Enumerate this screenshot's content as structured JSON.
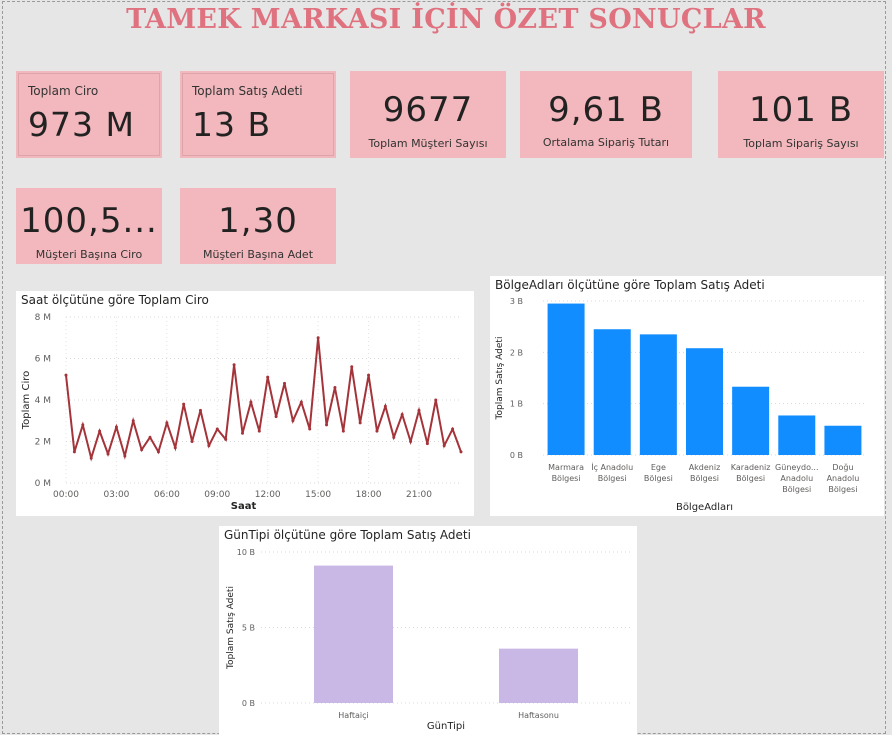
{
  "page_title": "TAMEK MARKASI İÇİN ÖZET SONUÇLAR",
  "cards": [
    {
      "label": "Toplam Ciro",
      "value": "973 M"
    },
    {
      "label": "Toplam Satış Adeti",
      "value": "13 B"
    },
    {
      "label": "Toplam Müşteri Sayısı",
      "value": "9677"
    },
    {
      "label": "Ortalama Sipariş Tutarı",
      "value": "9,61 B"
    },
    {
      "label": "Toplam Sipariş Sayısı",
      "value": "101 B"
    },
    {
      "label": "Müşteri Başına Ciro",
      "value": "100,5..."
    },
    {
      "label": "Müşteri Başına Adet",
      "value": "1,30"
    }
  ],
  "colors": {
    "line": "#a4343a",
    "bar_region": "#118dff",
    "bar_day": "#c9b8e6",
    "card": "#f2b8bd",
    "title": "#e0727f"
  },
  "chart_data": [
    {
      "type": "line",
      "title": "Saat ölçütüne göre Toplam Ciro",
      "xlabel": "Saat",
      "ylabel": "Toplam Ciro",
      "ylim": [
        0,
        8000000
      ],
      "yticks": [
        {
          "v": 0,
          "label": "0 M"
        },
        {
          "v": 2000000,
          "label": "2 M"
        },
        {
          "v": 4000000,
          "label": "4 M"
        },
        {
          "v": 6000000,
          "label": "6 M"
        },
        {
          "v": 8000000,
          "label": "8 M"
        }
      ],
      "xticks": [
        "00:00",
        "03:00",
        "06:00",
        "09:00",
        "12:00",
        "15:00",
        "18:00",
        "21:00"
      ],
      "x": [
        "00:00",
        "00:30",
        "01:00",
        "01:30",
        "02:00",
        "02:30",
        "03:00",
        "03:30",
        "04:00",
        "04:30",
        "05:00",
        "05:30",
        "06:00",
        "06:30",
        "07:00",
        "07:30",
        "08:00",
        "08:30",
        "09:00",
        "09:30",
        "10:00",
        "10:30",
        "11:00",
        "11:30",
        "12:00",
        "12:30",
        "13:00",
        "13:30",
        "14:00",
        "14:30",
        "15:00",
        "15:30",
        "16:00",
        "16:30",
        "17:00",
        "17:30",
        "18:00",
        "18:30",
        "19:00",
        "19:30",
        "20:00",
        "20:30",
        "21:00",
        "21:30",
        "22:00",
        "22:30",
        "23:00",
        "23:30"
      ],
      "values": [
        5200000,
        1500000,
        2800000,
        1200000,
        2500000,
        1400000,
        2700000,
        1300000,
        3000000,
        1600000,
        2200000,
        1500000,
        2900000,
        1700000,
        3800000,
        2000000,
        3500000,
        1800000,
        2600000,
        2100000,
        5700000,
        2400000,
        3900000,
        2500000,
        5100000,
        3200000,
        4800000,
        3000000,
        3900000,
        2600000,
        7000000,
        2800000,
        4600000,
        2500000,
        5600000,
        2900000,
        5200000,
        2500000,
        3700000,
        2200000,
        3300000,
        2000000,
        3500000,
        1900000,
        4000000,
        1800000,
        2600000,
        1500000
      ],
      "grid": true,
      "legend": "none"
    },
    {
      "type": "bar",
      "title": "BölgeAdları ölçütüne göre Toplam Satış Adeti",
      "xlabel": "BölgeAdları",
      "ylabel": "Toplam Satış Adeti",
      "categories": [
        [
          "Marmara",
          "Bölgesi"
        ],
        [
          "İç Anadolu",
          "Bölgesi"
        ],
        [
          "Ege",
          "Bölgesi"
        ],
        [
          "Akdeniz",
          "Bölgesi"
        ],
        [
          "Karadeniz",
          "Bölgesi"
        ],
        [
          "Güneydo...",
          "Anadolu",
          "Bölgesi"
        ],
        [
          "Doğu",
          "Anadolu",
          "Bölgesi"
        ]
      ],
      "values": [
        2950000000,
        2450000000,
        2350000000,
        2080000000,
        1330000000,
        770000000,
        570000000
      ],
      "ylim": [
        0,
        3000000000
      ],
      "yticks": [
        {
          "v": 0,
          "label": "0 B"
        },
        {
          "v": 1000000000,
          "label": "1 B"
        },
        {
          "v": 2000000000,
          "label": "2 B"
        },
        {
          "v": 3000000000,
          "label": "3 B"
        }
      ],
      "grid": true
    },
    {
      "type": "bar",
      "title": "GünTipi ölçütüne göre Toplam Satış Adeti",
      "xlabel": "GünTipi",
      "ylabel": "Toplam Satış Adeti",
      "categories": [
        [
          "Haftaiçi"
        ],
        [
          "Haftasonu"
        ]
      ],
      "values": [
        9100000000,
        3600000000
      ],
      "ylim": [
        0,
        10000000000
      ],
      "yticks": [
        {
          "v": 0,
          "label": "0 B"
        },
        {
          "v": 5000000000,
          "label": "5 B"
        },
        {
          "v": 10000000000,
          "label": "10 B"
        }
      ],
      "grid": true
    }
  ]
}
